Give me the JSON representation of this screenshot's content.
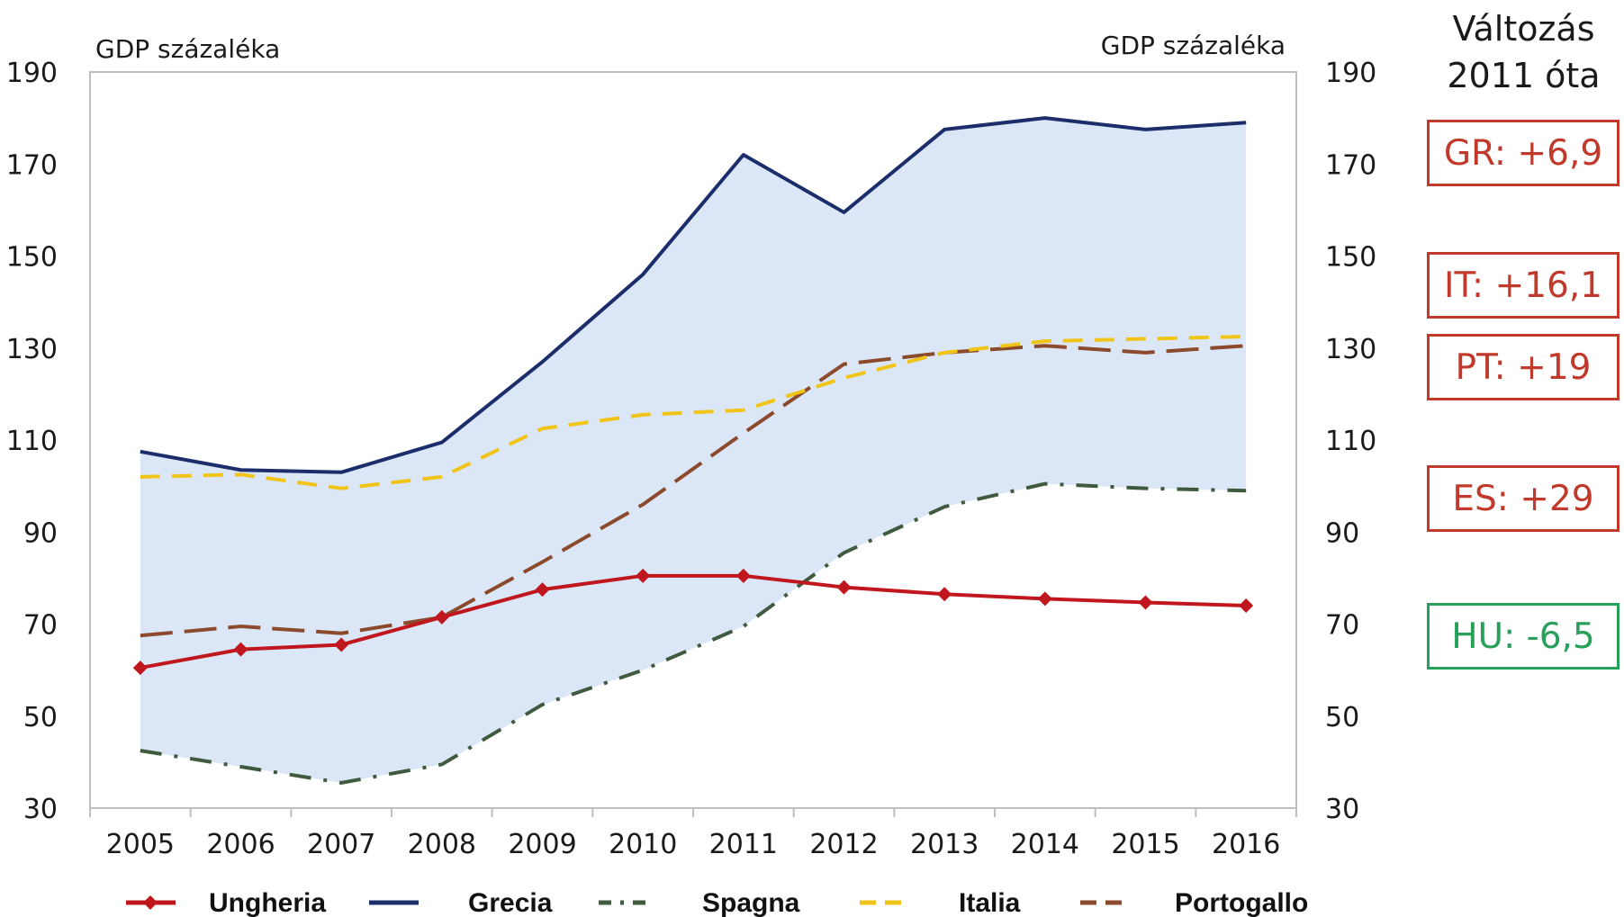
{
  "chart_data": {
    "type": "area",
    "y_unit_left": "GDP százaléka",
    "y_unit_right": "GDP százaléka",
    "ylim": [
      30,
      190
    ],
    "yticks": [
      30,
      50,
      70,
      90,
      110,
      130,
      150,
      170,
      190
    ],
    "categories": [
      "2005",
      "2006",
      "2007",
      "2008",
      "2009",
      "2010",
      "2011",
      "2012",
      "2013",
      "2014",
      "2015",
      "2016"
    ],
    "band": {
      "upper": "Grecia",
      "lower": "Spagna",
      "color": "#dbe7f6"
    },
    "series": [
      {
        "name": "Ungheria",
        "color": "#c0171f",
        "style": "solid-diamond",
        "values": [
          60.5,
          64.5,
          65.5,
          71.5,
          77.5,
          80.5,
          80.5,
          78.0,
          76.5,
          75.5,
          74.7,
          74.0
        ]
      },
      {
        "name": "Grecia",
        "color": "#1c2d6b",
        "style": "solid",
        "values": [
          107.5,
          103.5,
          103.0,
          109.5,
          127.0,
          146.0,
          172.0,
          159.5,
          177.5,
          180.0,
          177.5,
          179.0
        ]
      },
      {
        "name": "Spagna",
        "color": "#3f5a3f",
        "style": "dashdot",
        "values": [
          42.5,
          39.0,
          35.5,
          39.5,
          52.5,
          60.0,
          69.5,
          85.5,
          95.5,
          100.5,
          99.5,
          99.0
        ]
      },
      {
        "name": "Italia",
        "color": "#f0c419",
        "style": "dash",
        "values": [
          102.0,
          102.5,
          99.5,
          102.0,
          112.5,
          115.5,
          116.5,
          123.5,
          129.0,
          131.5,
          132.0,
          132.5
        ]
      },
      {
        "name": "Portogallo",
        "color": "#8b4a2b",
        "style": "longdash",
        "values": [
          67.5,
          69.5,
          68.0,
          71.5,
          83.5,
          96.0,
          111.5,
          126.5,
          129.0,
          130.5,
          129.0,
          130.5
        ]
      }
    ],
    "legend": [
      "Ungheria",
      "Grecia",
      "Spagna",
      "Italia",
      "Portogallo"
    ],
    "legend_placement": "bottom"
  },
  "side_panel": {
    "title_line1": "Változás",
    "title_line2": "2011 óta",
    "changes": [
      {
        "label": "GR:  +6,9",
        "color": "#c0392b"
      },
      {
        "label": "IT:  +16,1",
        "color": "#c0392b"
      },
      {
        "label": "PT:  +19",
        "color": "#c0392b"
      },
      {
        "label": "ES:  +29",
        "color": "#c0392b"
      },
      {
        "label": "HU:  -6,5",
        "color": "#27a05a"
      }
    ]
  }
}
